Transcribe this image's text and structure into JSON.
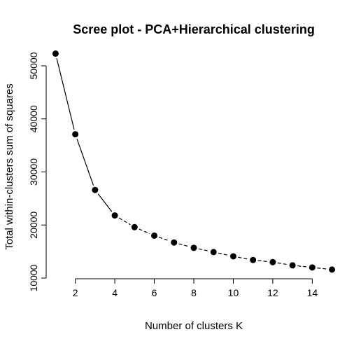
{
  "chart_data": {
    "type": "line",
    "title": "Scree plot - PCA+Hierarchical clustering",
    "xlabel": "Number of clusters K",
    "ylabel": "Total within-clusters sum of squares",
    "x": [
      1,
      2,
      3,
      4,
      5,
      6,
      7,
      8,
      9,
      10,
      11,
      12,
      13,
      14,
      15
    ],
    "series": [
      {
        "values": [
          52300,
          37100,
          26600,
          21800,
          19600,
          18000,
          16700,
          15700,
          14900,
          14100,
          13400,
          13000,
          12400,
          12000,
          11600
        ]
      }
    ],
    "xlim": [
      0.56,
      15.44
    ],
    "ylim": [
      10000,
      52900
    ],
    "x_ticks": [
      2,
      4,
      6,
      8,
      10,
      12,
      14
    ],
    "y_ticks": [
      10000,
      20000,
      30000,
      40000,
      50000
    ],
    "x_tick_labels": [
      "2",
      "4",
      "6",
      "8",
      "10",
      "12",
      "14"
    ],
    "y_tick_labels": [
      "10000",
      "20000",
      "30000",
      "40000",
      "50000"
    ],
    "grid": false,
    "marker": "filled-circle",
    "line_style": "solid-then-dashed",
    "solid_until_index": 3,
    "colors": {
      "line": "#000000",
      "marker": "#000000",
      "axis": "#000000"
    }
  }
}
